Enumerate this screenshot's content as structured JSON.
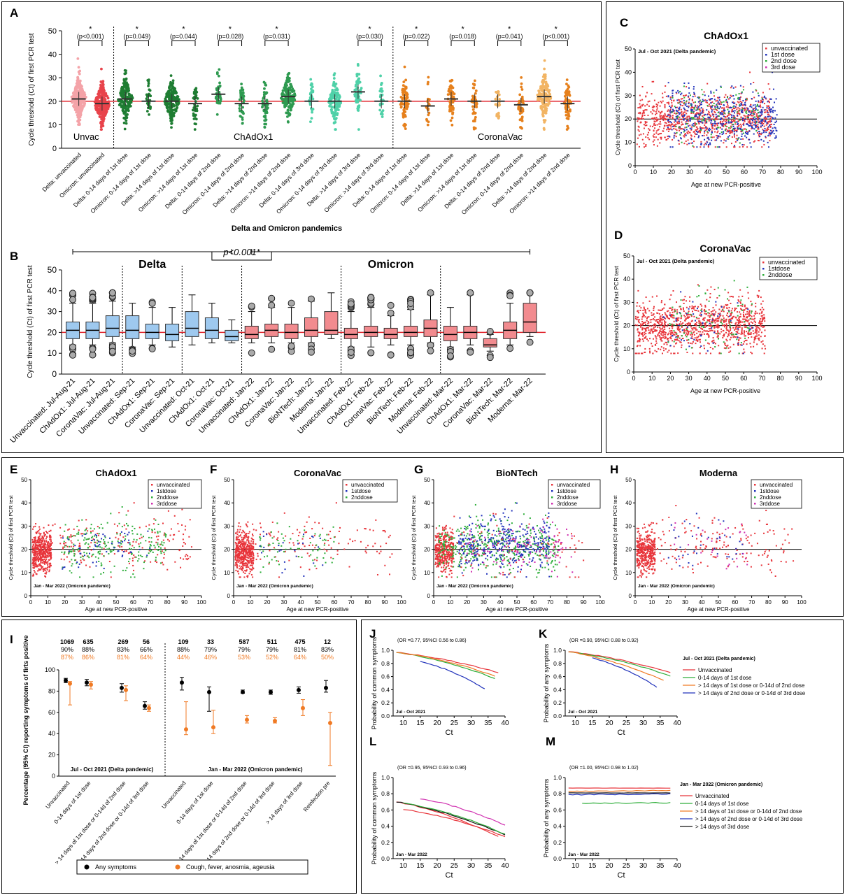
{
  "colors": {
    "unvac": "#e8434b",
    "unvac_light": "#f4a3a8",
    "chad": "#1e7d32",
    "chad2": "#2e9a50",
    "chad3": "#4fd1a8",
    "corona": "#e6801c",
    "corona_light": "#f2b463",
    "ref_line": "#e0222a",
    "box_blue": "#9ec9ef",
    "box_red": "#f28b8f",
    "s_red": "#e8353b",
    "s_blue": "#2233bb",
    "s_green": "#2eae3a",
    "s_mag": "#d030b0",
    "s_black": "#111111",
    "dot_black": "#000000",
    "dot_orange": "#f07a24"
  },
  "chart_data": [
    {
      "panel": "A",
      "type": "scatter",
      "ylabel": "Cycle threshold (Ct) of first PCR test",
      "xlabel": "Delta and Omicron pandemics",
      "ylim": [
        0,
        50
      ],
      "group_labels": [
        "Unvac",
        "ChAdOx1",
        "CoronaVac"
      ],
      "categories": [
        "Delta: unvaccinated",
        "Omicron: unvaccinated",
        "Delta: 0-14 days of 1st dose",
        "Omicron: 0-14 days of 1st dose",
        "Delta: >14 days of 1st dose",
        "Omicron: >14 days of 1st dose",
        "Delta: 0-14 days of 2nd dose",
        "Omicron: 0-14 days of 2nd dose",
        "Delta: >14 days of 2nd dose",
        "Omicron: >14 days of 2nd dose",
        "Delta: 0-14 days of 3rd dose",
        "Omicron: 0-14 days of 3rd dose",
        "Delta: >14 days of 3rd dose",
        "Omicron: >14 days of 3rd dose",
        "Delta: 0-14 days of 1st dose",
        "Omicron: 0-14 days of 1st dose",
        "Delta: >14 days of 1st dose",
        "Omicron: >14 days of 1st dose",
        "Delta: 0-14 days of 2nd dose",
        "Omicron: 0-14 days of 2nd dose",
        "Delta: >14 days of 2nd dose",
        "Omicron: >14 days of 2nd dose"
      ],
      "medians": [
        21,
        19,
        21,
        20,
        20,
        19,
        23,
        19,
        19,
        22,
        20,
        20,
        24,
        20,
        20,
        18,
        21,
        20,
        20,
        18.5,
        22,
        19
      ],
      "comparisons": [
        {
          "pair": [
            0,
            1
          ],
          "p": "(p<0.001)"
        },
        {
          "pair": [
            2,
            3
          ],
          "p": "(p=0.049)"
        },
        {
          "pair": [
            4,
            5
          ],
          "p": "(p=0.044)"
        },
        {
          "pair": [
            6,
            7
          ],
          "p": "(p=0.028)"
        },
        {
          "pair": [
            8,
            9
          ],
          "p": "(p=0.031)"
        },
        {
          "pair": [
            12,
            13
          ],
          "p": "(p=0.030)"
        },
        {
          "pair": [
            14,
            15
          ],
          "p": "(p=0.022)"
        },
        {
          "pair": [
            16,
            17
          ],
          "p": "(p=0.018)"
        },
        {
          "pair": [
            18,
            19
          ],
          "p": "(p=0.041)"
        },
        {
          "pair": [
            20,
            21
          ],
          "p": "(p<0.001)"
        }
      ],
      "star": "*",
      "ref_y": 20
    },
    {
      "panel": "B",
      "type": "box",
      "ylabel": "Cycle threshold (Ct) of first PCR test",
      "ylim": [
        0,
        50
      ],
      "ref_y": 20,
      "delta_label": "Delta",
      "omicron_label": "Omicron",
      "p_label": "p<0.001*",
      "categories": [
        "Unvaccinated: Jul-Aug-21",
        "ChAdOx1: Jul-Aug-21",
        "CoronaVac: Jul-Aug-21",
        "Unvaccinated: Sep-21",
        "ChAdOx1: Sep-21",
        "CoronaVac: Sep-21",
        "Unvaccinated: Oct-21",
        "ChAdOx1: Oct-21",
        "CoronaVac: Oct-21",
        "Unvaccinated: Jan-22",
        "ChAdOx1: Jan-22",
        "CoronaVac: Jan-22",
        "BioNTech: Jan-22",
        "Moderna: Jan-22",
        "Unvaccinated: Feb-22",
        "ChAdOx1: Feb-22",
        "CoronaVac: Feb-22",
        "BioNTech: Feb-22",
        "Moderna: Feb-22",
        "Unvaccinated: Mar-22",
        "ChAdOx1: Mar-22",
        "CoronaVac: Mar-22",
        "BioNTech: Mar-22",
        "Moderna: Mar-22"
      ],
      "boxes": [
        [
          14,
          17,
          21,
          25,
          34
        ],
        [
          14,
          17,
          21,
          25,
          34
        ],
        [
          15,
          18,
          22,
          28,
          35
        ],
        [
          13,
          17,
          21,
          28,
          34
        ],
        [
          14,
          17,
          20,
          24,
          32
        ],
        [
          13,
          16,
          19,
          24,
          32
        ],
        [
          14,
          18,
          22,
          30,
          38
        ],
        [
          15,
          17,
          21,
          27,
          34
        ],
        [
          15,
          16,
          18,
          21,
          26
        ],
        [
          15,
          17,
          19,
          23,
          30
        ],
        [
          15,
          18,
          21,
          24,
          32
        ],
        [
          15,
          17,
          20,
          24,
          32
        ],
        [
          15,
          18,
          21,
          27,
          35
        ],
        [
          17,
          19,
          21,
          30,
          39
        ],
        [
          13,
          17,
          19,
          22,
          30
        ],
        [
          13,
          18,
          20,
          23,
          32
        ],
        [
          14,
          17,
          19,
          22,
          28
        ],
        [
          14,
          18,
          20,
          23,
          31
        ],
        [
          15,
          18,
          22,
          26,
          38
        ],
        [
          13,
          16,
          19,
          23,
          32
        ],
        [
          14,
          17,
          20,
          23,
          38
        ],
        [
          11,
          13,
          14,
          17,
          19
        ],
        [
          14,
          17,
          21,
          25,
          34
        ],
        [
          18,
          20,
          25,
          34,
          39
        ]
      ],
      "box_color": [
        "blue",
        "blue",
        "blue",
        "blue",
        "blue",
        "blue",
        "blue",
        "blue",
        "blue",
        "red",
        "red",
        "red",
        "red",
        "red",
        "red",
        "red",
        "red",
        "red",
        "red",
        "red",
        "red",
        "red",
        "red",
        "red"
      ]
    },
    {
      "panel": "C",
      "type": "scatter",
      "title": "ChAdOx1",
      "period": "Jul - Oct 2021 (Delta pandemic)",
      "xlabel": "Age at new PCR-positive",
      "ylabel": "Cycle threshold (Ct) of first PCR test",
      "xlim": [
        0,
        100
      ],
      "ylim": [
        0,
        50
      ],
      "ref_y": 20,
      "legend": [
        "unvaccinated",
        "1st dose",
        "2nd dose",
        "3rd dose"
      ]
    },
    {
      "panel": "D",
      "type": "scatter",
      "title": "CoronaVac",
      "period": "Jul - Oct 2021 (Delta pandemic)",
      "xlabel": "Age at new PCR-positive",
      "ylabel": "Cycle threshold (Ct) of first PCR test",
      "xlim": [
        0,
        100
      ],
      "ylim": [
        0,
        50
      ],
      "ref_y": 20,
      "legend": [
        "unvaccinated",
        "1stdose",
        "2nddose"
      ]
    },
    {
      "panel": "E",
      "type": "scatter",
      "title": "ChAdOx1",
      "period": "Jan - Mar 2022 (Omicron pandemic)",
      "xlabel": "Age at new PCR-positive",
      "ylabel": "Cycle threshold (Ct) of first PCR test",
      "xlim": [
        0,
        100
      ],
      "ylim": [
        0,
        50
      ],
      "ref_y": 20,
      "legend": [
        "unvaccinated",
        "1stdose",
        "2nddose",
        "3rddose"
      ]
    },
    {
      "panel": "F",
      "type": "scatter",
      "title": "CoronaVac",
      "period": "Jan - Mar 2022 (Omicron pandemic)",
      "xlabel": "Age at new PCR-positive",
      "ylabel": "Cycle threshold (Ct) of first PCR test",
      "xlim": [
        0,
        100
      ],
      "ylim": [
        0,
        50
      ],
      "ref_y": 20,
      "legend": [
        "unvaccinated",
        "1stdose",
        "2nddose"
      ]
    },
    {
      "panel": "G",
      "type": "scatter",
      "title": "BioNTech",
      "period": "Jan - Mar 2022 (Omicron pandemic)",
      "xlabel": "Age at new PCR-positive",
      "ylabel": "Cycle threshold (Ct) of first PCR test",
      "xlim": [
        0,
        100
      ],
      "ylim": [
        0,
        50
      ],
      "ref_y": 20,
      "legend": [
        "unvaccinated",
        "1stdose",
        "2nddose",
        "3rddose"
      ]
    },
    {
      "panel": "H",
      "type": "scatter",
      "title": "Moderna",
      "period": "Jan - Mar 2022 (Omicron pandemic)",
      "xlabel": "Age at new PCR-positive",
      "ylabel": "Cycle threshold (Ct) of first PCR test",
      "xlim": [
        0,
        100
      ],
      "ylim": [
        0,
        50
      ],
      "ref_y": 20,
      "legend": [
        "unvaccinated",
        "1stdose",
        "2nddose",
        "3rddose"
      ]
    },
    {
      "panel": "I",
      "type": "scatter",
      "ylabel": "Percentage (95% CI) reporting symptoms of firts positive",
      "ylim": [
        0,
        100
      ],
      "delta_label": "Jul - Oct 2021 (Delta pandemic)",
      "omicron_label": "Jan - Mar 2022 (Omicron pandemic)",
      "categories": [
        "Unvaccinated",
        "0-14 days of 1st dose",
        "> 14 days of 1st dose or 0-14d of 2nd dose",
        "> 14 days of 2nd dose or 0-14d of 3rd dose",
        "Unvaccinated",
        "0-14 days of 1st dose",
        "> 14 days of 1st dose or 0-14d of 2nd dose",
        "> 14 days of 2nd dose or 0-14d of 3rd dose",
        "> 14 days of 3rd dose",
        "Reinfection pre"
      ],
      "n": [
        "1069",
        "635",
        "269",
        "56",
        "109",
        "33",
        "587",
        "511",
        "475",
        "12"
      ],
      "any_pct": [
        "90%",
        "88%",
        "83%",
        "66%",
        "88%",
        "79%",
        "79%",
        "79%",
        "81%",
        "83%"
      ],
      "cough_pct": [
        "87%",
        "86%",
        "81%",
        "64%",
        "44%",
        "46%",
        "53%",
        "52%",
        "64%",
        "50%"
      ],
      "series": [
        {
          "name": "Any symptoms",
          "values": [
            90,
            88,
            83,
            66,
            88,
            79,
            79,
            79,
            81,
            83
          ],
          "ci": [
            [
              88,
              92
            ],
            [
              85,
              91
            ],
            [
              79,
              87
            ],
            [
              63,
              70
            ],
            [
              81,
              93
            ],
            [
              61,
              84
            ],
            [
              78,
              81
            ],
            [
              77,
              81
            ],
            [
              78,
              84
            ],
            [
              79,
              90
            ]
          ]
        },
        {
          "name": "Cough, fever, anosmia, ageusia",
          "values": [
            87,
            86,
            81,
            64,
            44,
            46,
            53,
            52,
            64,
            50
          ],
          "ci": [
            [
              67,
              89
            ],
            [
              82,
              89
            ],
            [
              71,
              85
            ],
            [
              61,
              67
            ],
            [
              39,
              70
            ],
            [
              40,
              62
            ],
            [
              50,
              57
            ],
            [
              50,
              55
            ],
            [
              57,
              72
            ],
            [
              10,
              60
            ]
          ]
        }
      ]
    },
    {
      "panel": "J",
      "type": "line",
      "annotation": "(OR =0.77, 95%CI 0.56 to 0.86)",
      "period": "Jul - Oct 2021",
      "xlabel": "Ct",
      "ylabel": "Probability of common symptoms",
      "xlim": [
        7,
        40
      ],
      "ylim": [
        0,
        1
      ],
      "series": [
        {
          "x": [
            8,
            38
          ],
          "y": [
            0.97,
            0.66
          ]
        },
        {
          "x": [
            8,
            37
          ],
          "y": [
            0.97,
            0.57
          ]
        },
        {
          "x": [
            8,
            37
          ],
          "y": [
            0.97,
            0.61
          ]
        },
        {
          "x": [
            15,
            34
          ],
          "y": [
            0.83,
            0.41
          ]
        }
      ]
    },
    {
      "panel": "K",
      "type": "line",
      "annotation": "(OR =0.90, 95%CI 0.88 to 0.92)",
      "period": "Jul - Oct 2021",
      "xlabel": "Ct",
      "ylabel": "Probability of any symptoms",
      "xlim": [
        7,
        40
      ],
      "ylim": [
        0,
        1
      ],
      "legend_title": "Jul - Oct 2021 (Delta pandemic)",
      "legend": [
        "Unvaccinated",
        "0-14 days of 1st dose",
        "> 14 days of 1st dose or 0-14d of 2nd dose",
        "> 14 days of 2nd dose or 0-14d of 3rd dose"
      ],
      "series": [
        {
          "x": [
            8,
            38
          ],
          "y": [
            0.98,
            0.66
          ]
        },
        {
          "x": [
            8,
            38
          ],
          "y": [
            0.98,
            0.61
          ]
        },
        {
          "x": [
            8,
            36
          ],
          "y": [
            0.98,
            0.54
          ]
        },
        {
          "x": [
            15,
            34
          ],
          "y": [
            0.88,
            0.44
          ]
        }
      ]
    },
    {
      "panel": "L",
      "type": "line",
      "annotation": "(OR =0.95, 95%CI 0.93 to 0.96)",
      "period": "Jan - Mar 2022",
      "xlabel": "Ct",
      "ylabel": "Probability of common symptoms",
      "xlim": [
        7,
        40
      ],
      "ylim": [
        0,
        1
      ],
      "series": [
        {
          "x": [
            8,
            38
          ],
          "y": [
            0.7,
            0.27
          ]
        },
        {
          "x": [
            8,
            40
          ],
          "y": [
            0.7,
            0.29
          ]
        },
        {
          "x": [
            10,
            40
          ],
          "y": [
            0.61,
            0.27
          ]
        },
        {
          "x": [
            10,
            40
          ],
          "y": [
            0.69,
            0.3
          ]
        },
        {
          "x": [
            15,
            40
          ],
          "y": [
            0.74,
            0.41
          ]
        }
      ]
    },
    {
      "panel": "M",
      "type": "line",
      "annotation": "(OR =1.00, 95%CI 0.98 to 1.02)",
      "period": "Jan - Mar 2022",
      "xlabel": "Ct",
      "ylabel": "Probability of any symptoms",
      "xlim": [
        7,
        40
      ],
      "ylim": [
        0,
        1
      ],
      "legend_title": "Jan - Mar 2022 (Omicron pandemic)",
      "legend": [
        "Unvaccinated",
        "0-14 days of 1st dose",
        "> 14 days of 1st dose or 0-14d of 2nd dose",
        "> 14 days of 2nd dose or 0-14d of 3rd dose",
        "> 14 days of 3rd dose"
      ],
      "series": [
        {
          "x": [
            8,
            38
          ],
          "y": [
            0.87,
            0.87
          ]
        },
        {
          "x": [
            12,
            38
          ],
          "y": [
            0.68,
            0.69
          ]
        },
        {
          "x": [
            8,
            38
          ],
          "y": [
            0.83,
            0.84
          ]
        },
        {
          "x": [
            8,
            38
          ],
          "y": [
            0.79,
            0.8
          ]
        },
        {
          "x": [
            8,
            38
          ],
          "y": [
            0.81,
            0.81
          ]
        }
      ]
    }
  ],
  "panel_letters": [
    "A",
    "B",
    "C",
    "D",
    "E",
    "F",
    "G",
    "H",
    "I",
    "J",
    "K",
    "L",
    "M"
  ],
  "legend_I": [
    "Any symptoms",
    "Cough, fever, anosmia, ageusia"
  ]
}
